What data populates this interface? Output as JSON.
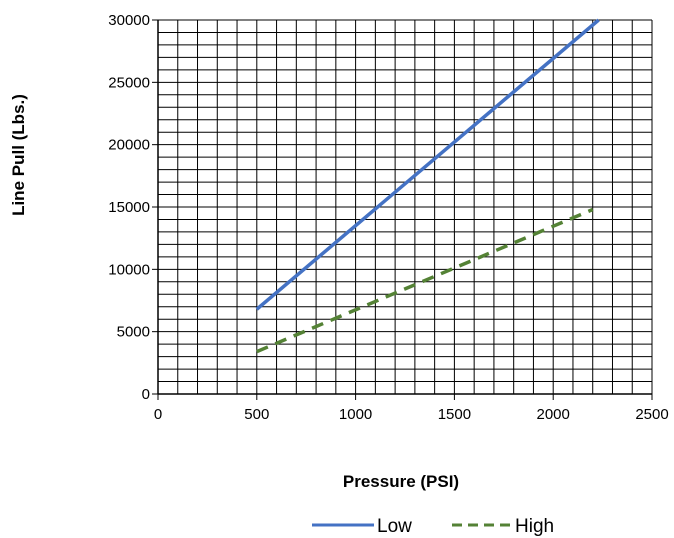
{
  "chart_data": {
    "type": "line",
    "title": "",
    "xlabel": "Pressure (PSI)",
    "ylabel": "Line Pull (Lbs.)",
    "xlim": [
      0,
      2500
    ],
    "ylim": [
      0,
      30000
    ],
    "x_ticks": [
      "0",
      "500",
      "1000",
      "1500",
      "2000",
      "2500"
    ],
    "y_ticks": [
      "0",
      "5000",
      "10000",
      "15000",
      "20000",
      "25000",
      "30000"
    ],
    "grid": true,
    "legend_position": "bottom-right",
    "series": [
      {
        "name": "Low",
        "color": "#4472c4",
        "style": "solid",
        "x": [
          500,
          2230
        ],
        "y": [
          6800,
          30000
        ]
      },
      {
        "name": "High",
        "color": "#548235",
        "style": "dashed",
        "x": [
          500,
          2200
        ],
        "y": [
          3400,
          14800
        ]
      }
    ]
  }
}
